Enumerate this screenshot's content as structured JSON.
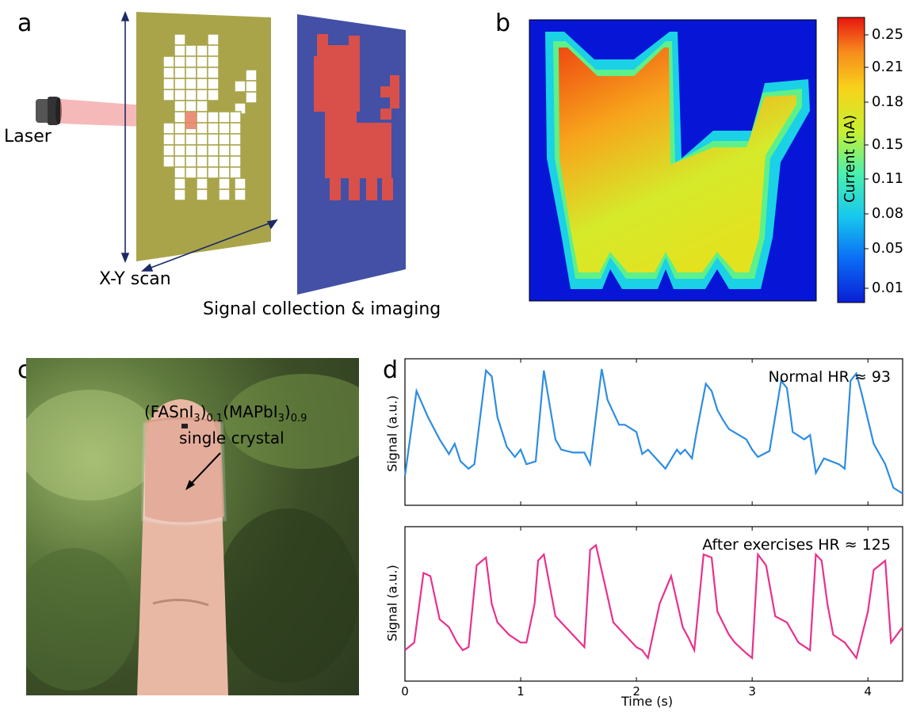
{
  "panels": {
    "a": "a",
    "b": "b",
    "c": "c",
    "d": "d"
  },
  "panel_a": {
    "laser_label": "Laser",
    "scan_label": "X-Y scan",
    "collection_label": "Signal collection & imaging"
  },
  "panel_b": {
    "colorbar_label": "Current (nA)",
    "colorbar_ticks": [
      "0.25",
      "0.21",
      "0.18",
      "0.15",
      "0.11",
      "0.08",
      "0.05",
      "0.01"
    ]
  },
  "panel_c": {
    "formula_part1": "(FASnI",
    "formula_sub1": "3",
    "formula_part2": ")",
    "formula_sub2": "0.1",
    "formula_part3": "(MAPbI",
    "formula_sub3": "3",
    "formula_part4": ")",
    "formula_sub4": "0.9",
    "crystal_label": "single crystal"
  },
  "chart_data": [
    {
      "type": "line",
      "title": "Normal HR ≈ 93",
      "xlabel": "",
      "ylabel": "Signal (a.u.)",
      "xlim": [
        0,
        4.3
      ],
      "color": "#2e8de0",
      "x": [
        0,
        0.1,
        0.2,
        0.3,
        0.38,
        0.43,
        0.48,
        0.55,
        0.6,
        0.7,
        0.75,
        0.8,
        0.88,
        0.95,
        1.0,
        1.05,
        1.13,
        1.2,
        1.3,
        1.35,
        1.45,
        1.55,
        1.6,
        1.7,
        1.75,
        1.85,
        1.9,
        2.0,
        2.05,
        2.1,
        2.25,
        2.35,
        2.38,
        2.42,
        2.48,
        2.52,
        2.6,
        2.65,
        2.7,
        2.75,
        2.8,
        2.95,
        3.0,
        3.05,
        3.15,
        3.25,
        3.3,
        3.35,
        3.45,
        3.5,
        3.55,
        3.62,
        3.75,
        3.8,
        3.85,
        3.9,
        3.95,
        4.05,
        4.15,
        4.22,
        4.3
      ],
      "y": [
        0.2,
        0.78,
        0.6,
        0.45,
        0.35,
        0.42,
        0.3,
        0.25,
        0.28,
        0.92,
        0.88,
        0.6,
        0.4,
        0.33,
        0.38,
        0.28,
        0.3,
        0.92,
        0.45,
        0.38,
        0.36,
        0.36,
        0.28,
        0.93,
        0.72,
        0.55,
        0.55,
        0.5,
        0.35,
        0.38,
        0.25,
        0.38,
        0.35,
        0.38,
        0.32,
        0.5,
        0.83,
        0.78,
        0.65,
        0.58,
        0.52,
        0.45,
        0.38,
        0.33,
        0.37,
        0.85,
        0.8,
        0.5,
        0.45,
        0.48,
        0.22,
        0.32,
        0.28,
        0.25,
        0.85,
        0.9,
        0.75,
        0.42,
        0.28,
        0.12,
        0.08
      ]
    },
    {
      "type": "line",
      "title": "After exercises HR ≈ 125",
      "xlabel": "Time (s)",
      "ylabel": "Signal (a.u.)",
      "xlim": [
        0,
        4.3
      ],
      "xticks": [
        "0",
        "1",
        "2",
        "3",
        "4"
      ],
      "color": "#e8318c",
      "x": [
        0,
        0.08,
        0.16,
        0.22,
        0.3,
        0.38,
        0.45,
        0.5,
        0.55,
        0.62,
        0.7,
        0.75,
        0.8,
        0.9,
        1.0,
        1.05,
        1.12,
        1.15,
        1.2,
        1.3,
        1.35,
        1.45,
        1.55,
        1.6,
        1.65,
        1.75,
        1.8,
        1.9,
        2.0,
        2.05,
        2.1,
        2.2,
        2.3,
        2.4,
        2.45,
        2.5,
        2.58,
        2.65,
        2.7,
        2.8,
        2.85,
        2.95,
        3.0,
        3.05,
        3.12,
        3.2,
        3.3,
        3.4,
        3.5,
        3.55,
        3.6,
        3.65,
        3.7,
        3.8,
        3.9,
        4.0,
        4.05,
        4.15,
        4.2,
        4.3
      ],
      "y": [
        0.2,
        0.25,
        0.7,
        0.68,
        0.4,
        0.35,
        0.25,
        0.2,
        0.22,
        0.75,
        0.8,
        0.5,
        0.38,
        0.3,
        0.25,
        0.25,
        0.5,
        0.78,
        0.82,
        0.42,
        0.38,
        0.3,
        0.22,
        0.85,
        0.88,
        0.55,
        0.38,
        0.3,
        0.22,
        0.2,
        0.15,
        0.5,
        0.68,
        0.35,
        0.28,
        0.2,
        0.82,
        0.8,
        0.45,
        0.3,
        0.25,
        0.18,
        0.15,
        0.82,
        0.75,
        0.42,
        0.38,
        0.25,
        0.2,
        0.82,
        0.78,
        0.5,
        0.3,
        0.25,
        0.15,
        0.45,
        0.72,
        0.78,
        0.25,
        0.35
      ]
    }
  ]
}
